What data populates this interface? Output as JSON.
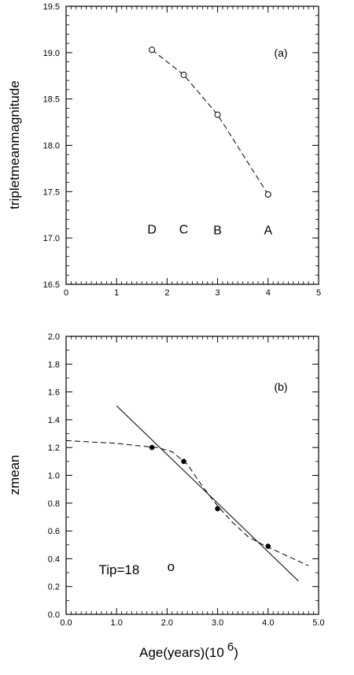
{
  "chart_data": [
    {
      "type": "line",
      "panel_label": "(a)",
      "xlabel": "",
      "ylabel": "tripletmeanmagnitude",
      "xlim": [
        0,
        5
      ],
      "ylim": [
        16.5,
        19.5
      ],
      "xticks": [
        "0",
        "1",
        "2",
        "3",
        "4",
        "5"
      ],
      "yticks": [
        "16.5",
        "17.0",
        "17.5",
        "18.0",
        "18.5",
        "19.0",
        "19.5"
      ],
      "grid": false,
      "series": [
        {
          "marker": "open-circle",
          "line": "dashed",
          "x": [
            1.7,
            2.33,
            3.0,
            4.0
          ],
          "y": [
            19.03,
            18.76,
            18.33,
            17.47
          ]
        }
      ],
      "point_labels": [
        {
          "text": "D",
          "x": 1.7,
          "y": 17.1
        },
        {
          "text": "C",
          "x": 2.33,
          "y": 17.1
        },
        {
          "text": "B",
          "x": 3.0,
          "y": 17.09
        },
        {
          "text": "A",
          "x": 4.0,
          "y": 17.09
        }
      ]
    },
    {
      "type": "scatter",
      "panel_label": "(b)",
      "xlabel": "Age(years)(10 6)",
      "xlabel_main": "Age(years)(10",
      "xlabel_sup": "6",
      "xlabel_end": ")",
      "ylabel": "zmean",
      "xlim": [
        0,
        5
      ],
      "ylim": [
        0,
        2
      ],
      "xticks": [
        "0.0",
        "1.0",
        "2.0",
        "3.0",
        "4.0",
        "5.0"
      ],
      "yticks": [
        "0.0",
        "0.2",
        "0.4",
        "0.6",
        "0.8",
        "1.0",
        "1.2",
        "1.4",
        "1.6",
        "1.8",
        "2.0"
      ],
      "grid": false,
      "series": [
        {
          "marker": "filled-circle",
          "x": [
            1.7,
            2.33,
            3.0,
            4.0
          ],
          "y": [
            1.2,
            1.1,
            0.76,
            0.49
          ]
        }
      ],
      "fit_line": {
        "style": "solid",
        "x": [
          1.0,
          4.6
        ],
        "y": [
          1.5,
          0.24
        ]
      },
      "smooth_curve": {
        "style": "dashed",
        "x": [
          0.0,
          0.5,
          1.0,
          1.5,
          1.8,
          2.1,
          2.4,
          2.7,
          3.0,
          3.3,
          3.6,
          3.9,
          4.2,
          4.5,
          4.8
        ],
        "y": [
          1.25,
          1.24,
          1.23,
          1.21,
          1.2,
          1.17,
          1.08,
          0.92,
          0.78,
          0.66,
          0.56,
          0.5,
          0.45,
          0.4,
          0.35
        ]
      },
      "annotation": {
        "text": "Tip=18",
        "marker": "o",
        "x": 1.05,
        "y": 0.29
      }
    }
  ]
}
